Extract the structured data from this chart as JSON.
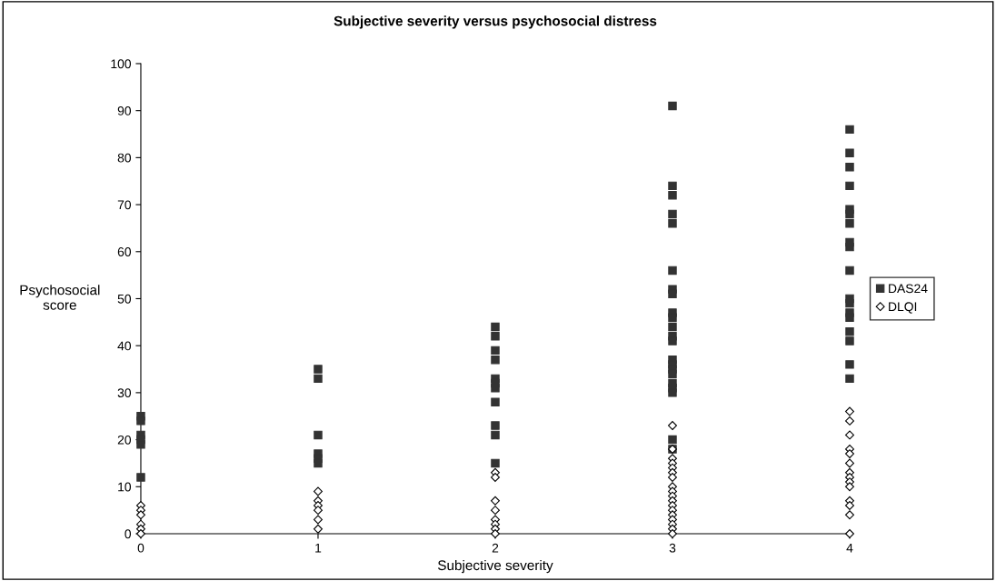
{
  "chart_data": {
    "type": "scatter",
    "title": "Subjective severity versus psychosocial distress",
    "xlabel": "Subjective severity",
    "ylabel": "Psychosocial\nscore",
    "xlim": [
      0,
      4
    ],
    "xticks": [
      0,
      1,
      2,
      3,
      4
    ],
    "ylim": [
      0,
      100
    ],
    "yticks": [
      0,
      10,
      20,
      30,
      40,
      50,
      60,
      70,
      80,
      90,
      100
    ],
    "grid": false,
    "legend": "right",
    "series": [
      {
        "name": "DAS24",
        "color": "#333333",
        "marker": "square",
        "x": [
          0,
          0,
          0,
          0,
          0,
          0,
          1,
          1,
          1,
          1,
          1,
          1,
          2,
          2,
          2,
          2,
          2,
          2,
          2,
          2,
          2,
          2,
          2,
          3,
          3,
          3,
          3,
          3,
          3,
          3,
          3,
          3,
          3,
          3,
          3,
          3,
          3,
          3,
          3,
          3,
          3,
          3,
          3,
          3,
          3,
          4,
          4,
          4,
          4,
          4,
          4,
          4,
          4,
          4,
          4,
          4,
          4,
          4,
          4,
          4,
          4,
          4,
          4
        ],
        "values": [
          25,
          24,
          21,
          20,
          19,
          12,
          35,
          33,
          21,
          17,
          16,
          15,
          44,
          42,
          39,
          37,
          33,
          32,
          31,
          28,
          23,
          21,
          15,
          91,
          74,
          72,
          68,
          66,
          56,
          52,
          51,
          47,
          46,
          44,
          42,
          41,
          37,
          36,
          35,
          34,
          32,
          31,
          30,
          20,
          18,
          86,
          81,
          78,
          74,
          69,
          68,
          66,
          62,
          61,
          56,
          50,
          49,
          47,
          46,
          43,
          41,
          36,
          33
        ]
      },
      {
        "name": "DLQI",
        "color": "#000000",
        "marker": "diamond",
        "x": [
          0,
          0,
          0,
          0,
          0,
          0,
          1,
          1,
          1,
          1,
          1,
          1,
          2,
          2,
          2,
          2,
          2,
          2,
          2,
          2,
          3,
          3,
          3,
          3,
          3,
          3,
          3,
          3,
          3,
          3,
          3,
          3,
          3,
          3,
          3,
          3,
          3,
          3,
          4,
          4,
          4,
          4,
          4,
          4,
          4,
          4,
          4,
          4,
          4,
          4,
          4,
          4
        ],
        "values": [
          6,
          5,
          4,
          2,
          1,
          0,
          9,
          7,
          6,
          5,
          3,
          1,
          13,
          12,
          7,
          5,
          3,
          2,
          1,
          0,
          23,
          18,
          16,
          15,
          14,
          13,
          12,
          10,
          9,
          8,
          7,
          6,
          5,
          4,
          3,
          2,
          1,
          0,
          26,
          24,
          21,
          18,
          17,
          15,
          13,
          12,
          11,
          10,
          7,
          6,
          4,
          0
        ]
      }
    ]
  }
}
